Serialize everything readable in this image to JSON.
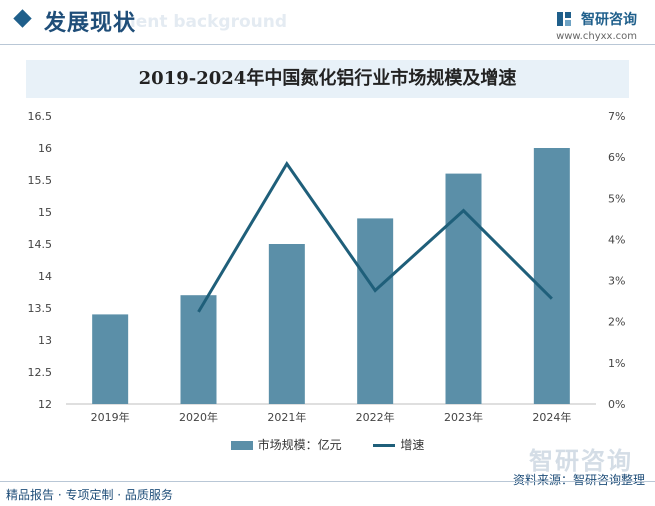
{
  "header": {
    "title": "发展现状",
    "background_text": "ment background"
  },
  "brand": {
    "name": "智研咨询",
    "url": "www.chyxx.com"
  },
  "watermark": "智研咨询",
  "footer": {
    "left": "精品报告 · 专项定制 · 品质服务",
    "source": "资料来源：智研咨询整理"
  },
  "colors": {
    "bar": "#5b8fa8",
    "line": "#1f5f7a",
    "title_background": "#e8f1f8",
    "brand": "#1f5f8b"
  },
  "chart_data": {
    "type": "bar",
    "title": "2019-2024年中国氮化铝行业市场规模及增速",
    "categories": [
      "2019年",
      "2020年",
      "2021年",
      "2022年",
      "2023年",
      "2024年"
    ],
    "series": [
      {
        "name": "市场规模：亿元",
        "type": "bar",
        "axis": "left",
        "values": [
          13.4,
          13.7,
          14.5,
          14.9,
          15.6,
          16.0
        ]
      },
      {
        "name": "增速",
        "type": "line",
        "axis": "right",
        "values": [
          null,
          2.24,
          5.84,
          2.76,
          4.7,
          2.56
        ]
      }
    ],
    "y_left": {
      "range": [
        12,
        16.5
      ],
      "ticks": [
        "12",
        "12.5",
        "13",
        "13.5",
        "14",
        "14.5",
        "15",
        "15.5",
        "16",
        "16.5"
      ]
    },
    "y_right": {
      "range": [
        0,
        7
      ],
      "ticks": [
        "0%",
        "1%",
        "2%",
        "3%",
        "4%",
        "5%",
        "6%",
        "7%"
      ]
    },
    "grid": false,
    "legend_position": "bottom"
  }
}
